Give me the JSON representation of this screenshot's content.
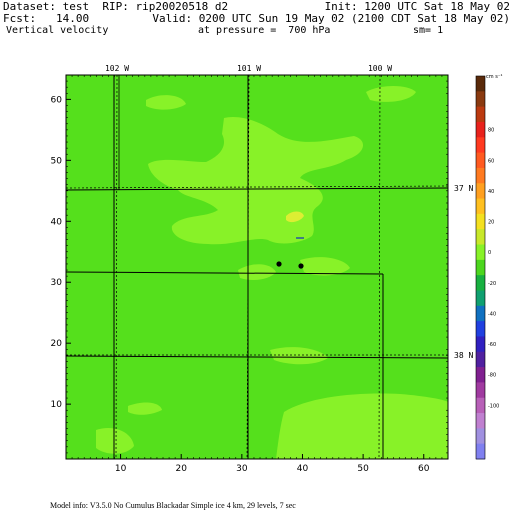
{
  "header": {
    "dataset_line": "Dataset: test  RIP: rip20020518 d2",
    "init_line": "Init: 1200 UTC Sat 18 May 02",
    "fcst_line": "Fcst:   14.00",
    "valid_line": "Valid: 0200 UTC Sun 19 May 02 (2100 CDT Sat 18 May 02)",
    "field_line": "Vertical velocity",
    "pressure_line": "at pressure =  700 hPa",
    "smooth_line": "sm= 1"
  },
  "map": {
    "x_ticks": [
      "10",
      "20",
      "30",
      "40",
      "50",
      "60"
    ],
    "y_ticks": [
      "10",
      "20",
      "30",
      "40",
      "50",
      "60"
    ],
    "longitude_labels": [
      "102 W",
      "101 W",
      "100 W"
    ],
    "latitude_labels": [
      "37 N",
      "38 N"
    ],
    "background_color": "#55e01c",
    "highlight_color": "#88f228",
    "peak_color": "#dcee33"
  },
  "colorbar": {
    "unit_label": "cm s⁻¹",
    "tick_labels": [
      "80",
      "60",
      "40",
      "20",
      "0",
      "-20",
      "-40",
      "-60",
      "-80",
      "-100"
    ],
    "colors": [
      "#5a2a0a",
      "#8a3a10",
      "#bb3a10",
      "#e8221c",
      "#ff3a20",
      "#ff5a20",
      "#ff7a20",
      "#ffa020",
      "#ffc020",
      "#f4e020",
      "#c8e82a",
      "#88f228",
      "#4cd61e",
      "#18b040",
      "#10a070",
      "#1070c0",
      "#2040e0",
      "#3020c0",
      "#5020a0",
      "#802090",
      "#a03aa0",
      "#b860b8",
      "#c080d0",
      "#a090e0",
      "#8080f0"
    ]
  },
  "footer": {
    "model_info": "Model info: V3.5.0 No Cumulus Blackadar  Simple ice    4 km,   29 levels,     7 sec"
  }
}
